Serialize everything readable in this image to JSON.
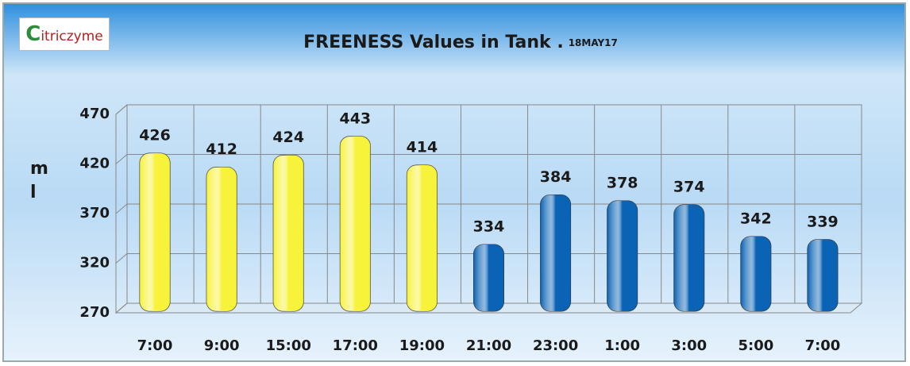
{
  "chart_data": {
    "type": "bar",
    "logo": "Citriczyme",
    "title": "FREENESS Values in Tank .",
    "subtitle": "18MAY17",
    "y_label": "ml",
    "categories": [
      "7:00",
      "9:00",
      "15:00",
      "17:00",
      "19:00",
      "21:00",
      "23:00",
      "1:00",
      "3:00",
      "5:00",
      "7:00"
    ],
    "values": [
      426,
      412,
      424,
      443,
      414,
      334,
      384,
      378,
      374,
      342,
      339
    ],
    "colors": [
      "#f7f23a",
      "#f7f23a",
      "#f7f23a",
      "#f7f23a",
      "#f7f23a",
      "#0a63b5",
      "#0a63b5",
      "#0a63b5",
      "#0a63b5",
      "#0a63b5",
      "#0a63b5"
    ],
    "ylim": [
      270,
      470
    ],
    "yticks": [
      270,
      320,
      370,
      420,
      470
    ],
    "grid": true
  }
}
